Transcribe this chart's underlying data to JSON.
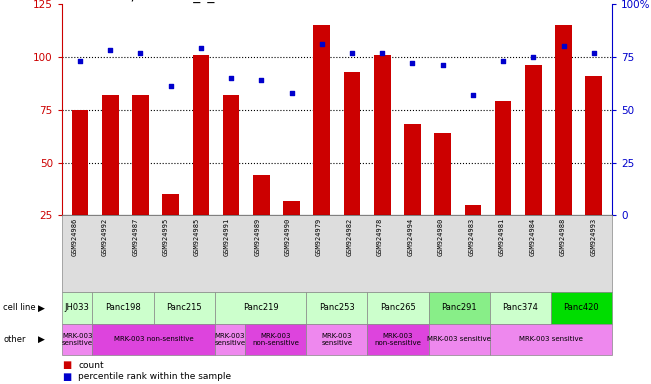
{
  "samples": [
    "GSM924986",
    "GSM924992",
    "GSM924987",
    "GSM924995",
    "GSM924985",
    "GSM924991",
    "GSM924989",
    "GSM924990",
    "GSM924979",
    "GSM924982",
    "GSM924978",
    "GSM924994",
    "GSM924980",
    "GSM924983",
    "GSM924981",
    "GSM924984",
    "GSM924988",
    "GSM924993"
  ],
  "counts": [
    75,
    82,
    82,
    35,
    101,
    82,
    44,
    32,
    115,
    93,
    101,
    68,
    64,
    30,
    79,
    96,
    115,
    91
  ],
  "percentiles": [
    73,
    78,
    77,
    61,
    79,
    65,
    64,
    58,
    81,
    77,
    77,
    72,
    71,
    57,
    73,
    75,
    80,
    77
  ],
  "cell_lines": [
    {
      "name": "JH033",
      "start": 0,
      "end": 1,
      "color": "#ccffcc"
    },
    {
      "name": "Panc198",
      "start": 1,
      "end": 3,
      "color": "#ccffcc"
    },
    {
      "name": "Panc215",
      "start": 3,
      "end": 5,
      "color": "#ccffcc"
    },
    {
      "name": "Panc219",
      "start": 5,
      "end": 8,
      "color": "#ccffcc"
    },
    {
      "name": "Panc253",
      "start": 8,
      "end": 10,
      "color": "#ccffcc"
    },
    {
      "name": "Panc265",
      "start": 10,
      "end": 12,
      "color": "#ccffcc"
    },
    {
      "name": "Panc291",
      "start": 12,
      "end": 14,
      "color": "#88ee88"
    },
    {
      "name": "Panc374",
      "start": 14,
      "end": 16,
      "color": "#ccffcc"
    },
    {
      "name": "Panc420",
      "start": 16,
      "end": 18,
      "color": "#00dd00"
    }
  ],
  "other_groups": [
    {
      "label": "MRK-003\nsensitive",
      "start": 0,
      "end": 1,
      "color": "#ee88ee"
    },
    {
      "label": "MRK-003 non-sensitive",
      "start": 1,
      "end": 5,
      "color": "#dd44dd"
    },
    {
      "label": "MRK-003\nsensitive",
      "start": 5,
      "end": 6,
      "color": "#ee88ee"
    },
    {
      "label": "MRK-003\nnon-sensitive",
      "start": 6,
      "end": 8,
      "color": "#dd44dd"
    },
    {
      "label": "MRK-003\nsensitive",
      "start": 8,
      "end": 10,
      "color": "#ee88ee"
    },
    {
      "label": "MRK-003\nnon-sensitive",
      "start": 10,
      "end": 12,
      "color": "#dd44dd"
    },
    {
      "label": "MRK-003 sensitive",
      "start": 12,
      "end": 14,
      "color": "#ee88ee"
    },
    {
      "label": "MRK-003 sensitive",
      "start": 14,
      "end": 18,
      "color": "#ee88ee"
    }
  ],
  "ylim_left": [
    25,
    125
  ],
  "ylim_right": [
    0,
    100
  ],
  "yticks_left": [
    25,
    50,
    75,
    100,
    125
  ],
  "yticks_right": [
    0,
    25,
    50,
    75,
    100
  ],
  "ytick_labels_right": [
    "0",
    "25",
    "50",
    "75",
    "100%"
  ],
  "bar_color": "#cc0000",
  "dot_color": "#0000cc",
  "background_color": "#ffffff",
  "title_fontsize": 10,
  "axis_color_left": "#cc0000",
  "axis_color_right": "#0000cc",
  "n_samples": 18
}
